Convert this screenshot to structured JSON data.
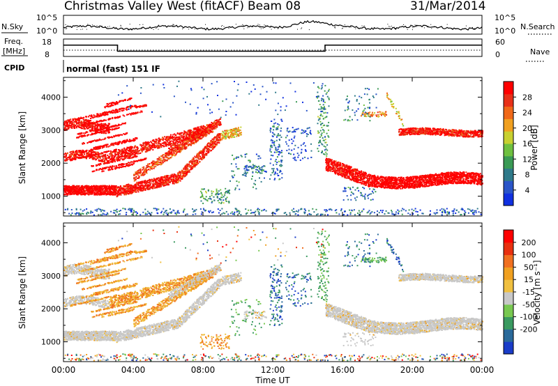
{
  "header": {
    "station": "Christmas Valley West (fitACF)",
    "beam": "Beam 08",
    "date": "31/Mar/2014"
  },
  "noise_panel": {
    "left_label": "N.Sky",
    "left_ticks": [
      "10^5",
      "10^0"
    ],
    "right_ticks": [
      "10^5",
      "10^0"
    ],
    "right_label": "N.Search"
  },
  "freq_panel": {
    "left_label_line1": "Freq.",
    "left_label_line2": "[MHz]",
    "left_ticks": [
      "18",
      "8"
    ],
    "right_ticks": [
      "60",
      "0"
    ],
    "right_label": "Nave",
    "freq_high_mhz": 14.5,
    "freq_low_mhz": 11.0,
    "low_start_hour": 3.1,
    "low_end_hour": 15.0
  },
  "cpid": {
    "label": "CPID",
    "program": "normal (fast) 151 IF"
  },
  "chart_data": [
    {
      "type": "heatmap",
      "name": "power",
      "ylabel": "Slant Range [km]",
      "ylim": [
        400,
        4600
      ],
      "yticks": [
        "4000",
        "3000",
        "2000",
        "1000"
      ],
      "xlim": [
        0,
        24
      ],
      "colorbar": {
        "label": "Power [dB]",
        "range": [
          0,
          32
        ],
        "ticks": [
          "28",
          "24",
          "20",
          "16",
          "12",
          "8",
          "4"
        ],
        "colors": [
          "#1030e0",
          "#2a55c8",
          "#2f7a8a",
          "#3a9a55",
          "#6fc040",
          "#c8d030",
          "#f0a020",
          "#f06818",
          "#e83018",
          "#ff0000"
        ]
      }
    },
    {
      "type": "heatmap",
      "name": "velocity",
      "ylabel": "Slant Range [km]",
      "ylim": [
        400,
        4600
      ],
      "yticks": [
        "4000",
        "3000",
        "2000",
        "1000"
      ],
      "xlim": [
        0,
        24
      ],
      "xticks": [
        "00:00",
        "04:00",
        "08:00",
        "12:00",
        "16:00",
        "20:00",
        "00:00"
      ],
      "xlabel": "Time UT",
      "colorbar": {
        "label": "Velocity [m s⁻¹]",
        "ticks": [
          "200",
          "100",
          "50",
          "15",
          "-15",
          "-50",
          "-100",
          "-200"
        ],
        "colors": [
          "#1a3cc8",
          "#2a6a9a",
          "#3a9a60",
          "#78c850",
          "#c8c8c8",
          "#f0c040",
          "#f0a020",
          "#f07020",
          "#e83010",
          "#ff0000"
        ]
      }
    }
  ]
}
